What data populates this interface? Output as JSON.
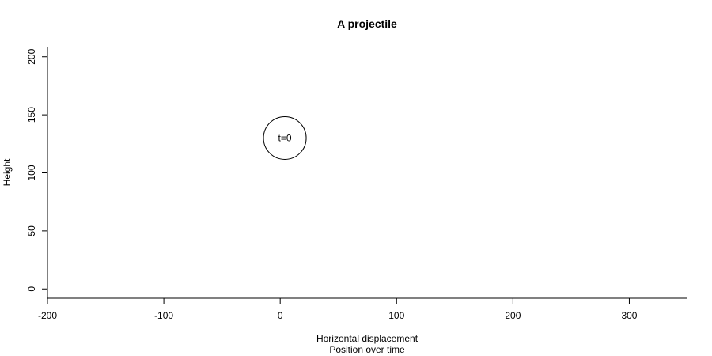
{
  "chart_data": {
    "type": "scatter",
    "title": "A projectile",
    "xlabel": "Horizontal displacement",
    "sublabel": "Position over time",
    "ylabel": "Height",
    "xlim": [
      -200,
      350
    ],
    "ylim": [
      -8,
      208
    ],
    "x_ticks": [
      -200,
      -100,
      0,
      100,
      200,
      300
    ],
    "y_ticks": [
      0,
      50,
      100,
      150,
      200
    ],
    "x_tick_labels": [
      "-200",
      "-100",
      "0",
      "100",
      "200",
      "300"
    ],
    "y_tick_labels": [
      "0",
      "50",
      "100",
      "150",
      "200"
    ],
    "grid": false,
    "legend": "none",
    "points": [
      {
        "x": 4,
        "y": 130,
        "label": "t=0"
      }
    ]
  }
}
